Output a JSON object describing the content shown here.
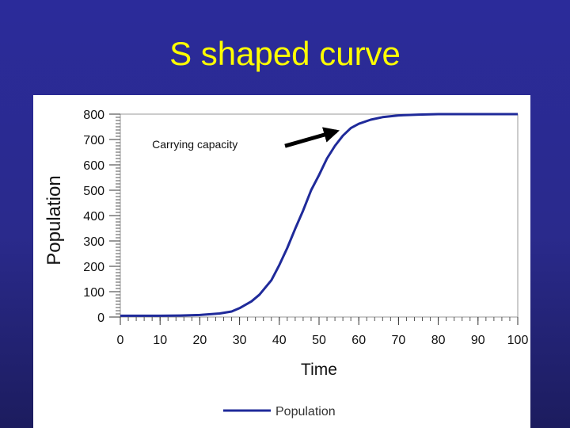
{
  "slide": {
    "title": "S shaped curve"
  },
  "colors": {
    "background": "#2a2a8c",
    "title": "#ffff00",
    "series": "#1f2a9a",
    "arrow": "#000000"
  },
  "chart_data": {
    "type": "line",
    "title": "",
    "xlabel": "Time",
    "ylabel": "Population",
    "xlim": [
      0,
      100
    ],
    "ylim": [
      0,
      800
    ],
    "xticks": [
      0,
      10,
      20,
      30,
      40,
      50,
      60,
      70,
      80,
      90,
      100
    ],
    "yticks": [
      0,
      100,
      200,
      300,
      400,
      500,
      600,
      700,
      800
    ],
    "grid": false,
    "legend_position": "bottom",
    "series": [
      {
        "name": "Population",
        "x": [
          0,
          5,
          10,
          15,
          20,
          25,
          28,
          30,
          33,
          35,
          38,
          40,
          42,
          44,
          46,
          48,
          50,
          52,
          54,
          56,
          58,
          60,
          63,
          66,
          70,
          75,
          80,
          90,
          100
        ],
        "y": [
          5,
          5,
          5,
          6,
          8,
          14,
          22,
          35,
          62,
          88,
          145,
          205,
          272,
          348,
          420,
          500,
          560,
          625,
          675,
          715,
          745,
          762,
          778,
          788,
          795,
          798,
          800,
          800,
          800
        ]
      }
    ],
    "annotations": [
      {
        "text": "Carrying capacity",
        "x": 8,
        "y": 665,
        "arrow_to": [
          56,
          745
        ]
      }
    ]
  }
}
